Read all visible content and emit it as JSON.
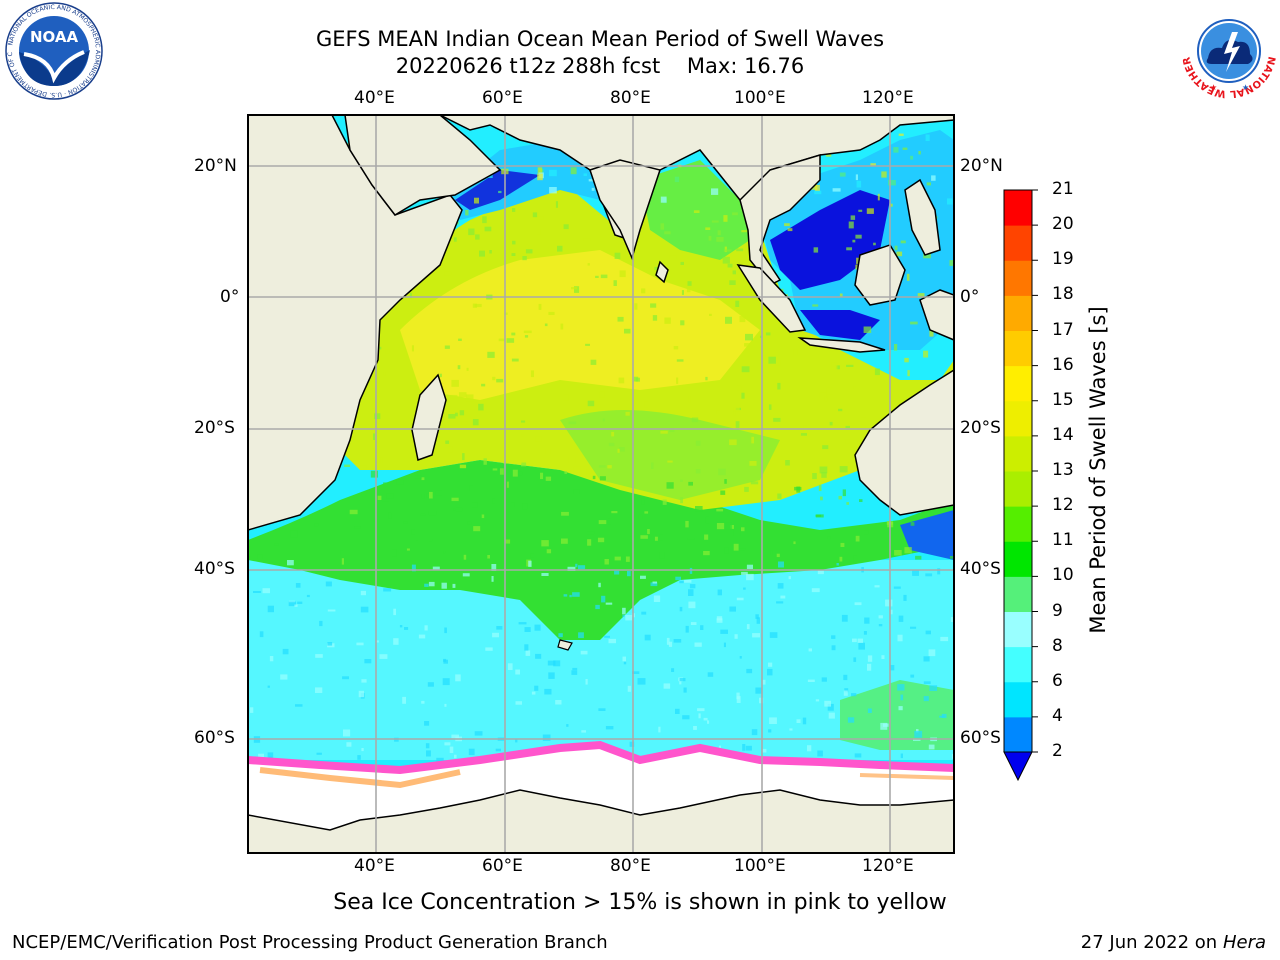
{
  "header": {
    "title_line1": "GEFS MEAN Indian Ocean Mean Period of Swell Waves",
    "run": "20220626 t12z 288h fcst",
    "max_label": "Max: 16.76"
  },
  "logos": {
    "noaa_text": "NOAA",
    "noaa_ring_text": "NATIONAL OCEANIC AND ATMOSPHERIC ADMINISTRATION · U.S. DEPARTMENT OF COMMERCE",
    "nws_ring_text": "NATIONAL WEATHER SERVICE"
  },
  "map": {
    "lon_ticks": [
      "40°E",
      "60°E",
      "80°E",
      "100°E",
      "120°E"
    ],
    "lat_ticks_left": [
      "20°N",
      "0°",
      "20°S",
      "40°S",
      "60°S"
    ],
    "lat_ticks_right": [
      "20°N",
      "0°",
      "20°S",
      "40°S",
      "60°S"
    ],
    "lon_range": [
      20,
      130
    ],
    "lat_range": [
      -80,
      27
    ],
    "colors": {
      "land": "#eeeedd",
      "ice": "#ffffff",
      "ice_edge": "#ff66cc",
      "grid": "#aaaaaa"
    }
  },
  "colorbar": {
    "label": "Mean Period of Swell Waves [s]",
    "ticks": [
      "2",
      "4",
      "6",
      "8",
      "9",
      "10",
      "11",
      "12",
      "13",
      "14",
      "15",
      "16",
      "17",
      "18",
      "19",
      "20",
      "21"
    ],
    "colors": [
      "#0022ee",
      "#0088ff",
      "#00e5ff",
      "#44ffff",
      "#99ffff",
      "#55f07a",
      "#00e600",
      "#55ee00",
      "#aaee00",
      "#ccee00",
      "#eeee00",
      "#ffee00",
      "#ffcc00",
      "#ffaa00",
      "#ff7700",
      "#ff4400",
      "#ff0000"
    ],
    "under_color": "#0000ee"
  },
  "caption": "Sea Ice Concentration > 15% is shown in pink to yellow",
  "footer": {
    "left": "NCEP/EMC/Verification Post Processing Product Generation Branch",
    "date": "27 Jun 2022 on",
    "machine": "Hera"
  }
}
